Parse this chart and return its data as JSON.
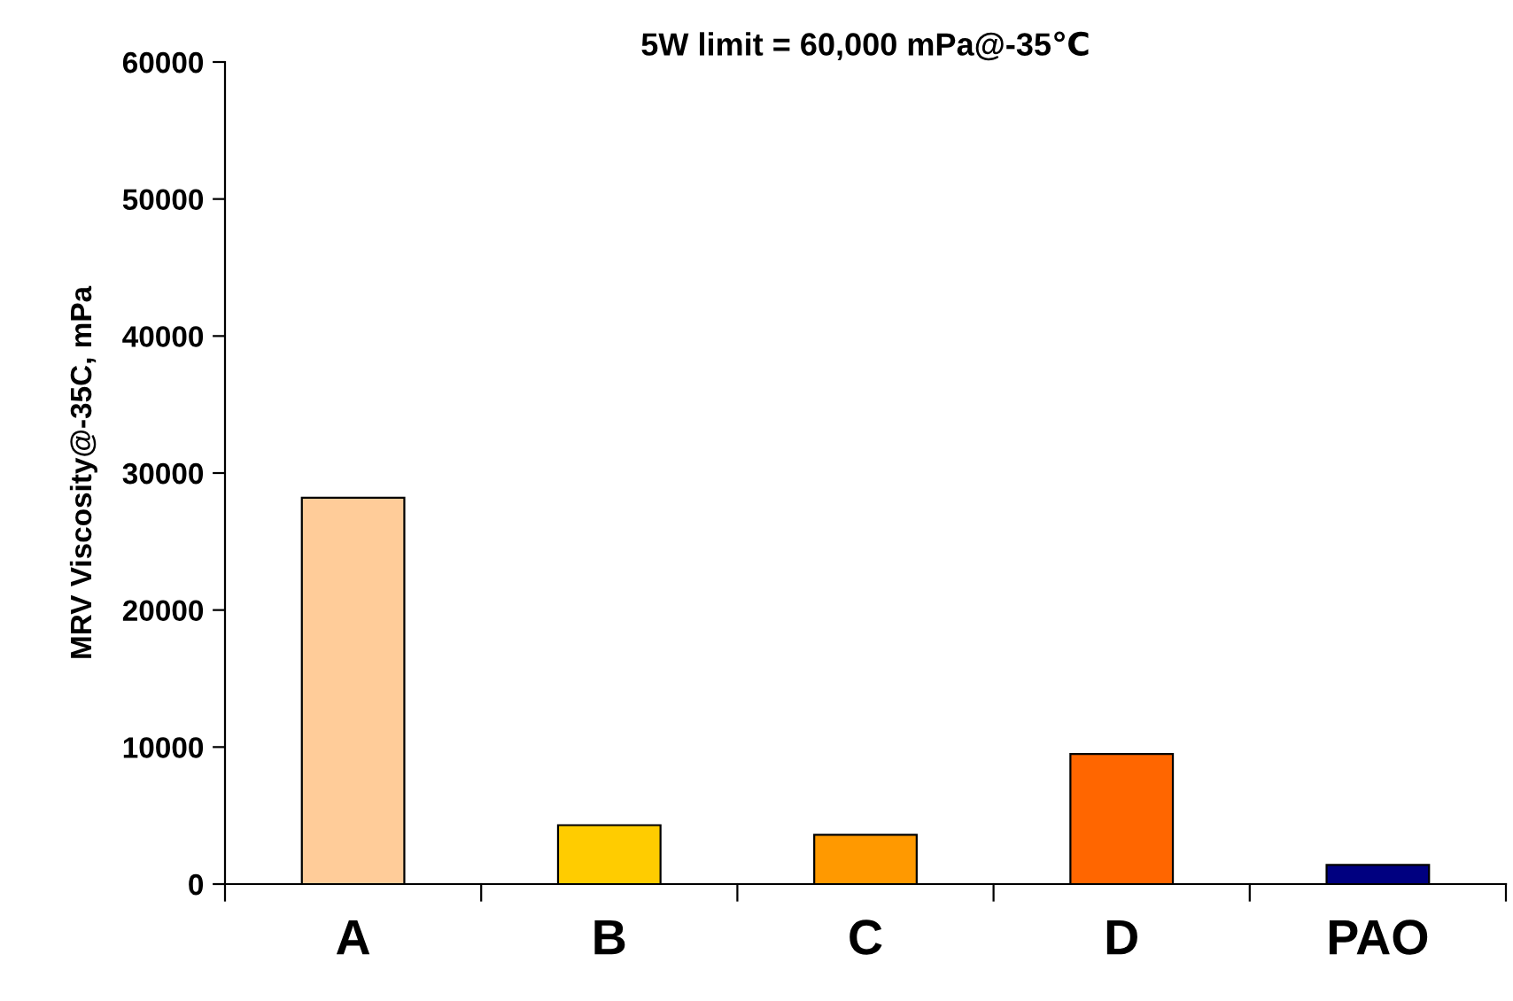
{
  "chart_data": {
    "type": "bar",
    "title": "5W limit = 60,000 mPa@-35℃",
    "ylabel": "MRV Viscosity@-35C, mPa",
    "categories": [
      "A",
      "B",
      "C",
      "D",
      "PAO"
    ],
    "values": [
      28200,
      4300,
      3600,
      9500,
      1400
    ],
    "colors": [
      "#ffcc99",
      "#ffcc00",
      "#ff9900",
      "#ff6600",
      "#000080"
    ],
    "ylim": [
      0,
      60000
    ],
    "yticks": [
      0,
      10000,
      20000,
      30000,
      40000,
      50000,
      60000
    ],
    "grid": false,
    "legend": false
  }
}
